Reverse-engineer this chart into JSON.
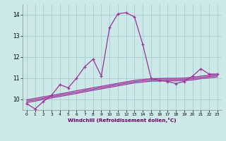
{
  "xlabel": "Windchill (Refroidissement éolien,°C)",
  "bg_color": "#cce8e8",
  "grid_color": "#aacccc",
  "line_color": "#993399",
  "x": [
    0,
    1,
    2,
    3,
    4,
    5,
    6,
    7,
    8,
    9,
    10,
    11,
    12,
    13,
    14,
    15,
    16,
    17,
    18,
    19,
    20,
    21,
    22,
    23
  ],
  "y_main": [
    9.8,
    9.55,
    9.9,
    10.2,
    10.7,
    10.55,
    11.0,
    11.55,
    11.9,
    11.1,
    13.4,
    14.05,
    14.1,
    13.9,
    12.6,
    11.0,
    10.9,
    10.85,
    10.75,
    10.85,
    11.1,
    11.45,
    11.2,
    11.2
  ],
  "y_line2": [
    9.85,
    9.92,
    10.0,
    10.07,
    10.14,
    10.21,
    10.28,
    10.36,
    10.43,
    10.5,
    10.57,
    10.64,
    10.71,
    10.78,
    10.82,
    10.86,
    10.87,
    10.88,
    10.88,
    10.89,
    10.92,
    10.98,
    11.02,
    11.06
  ],
  "y_line3": [
    9.92,
    9.98,
    10.06,
    10.13,
    10.2,
    10.27,
    10.34,
    10.42,
    10.49,
    10.56,
    10.63,
    10.7,
    10.77,
    10.84,
    10.88,
    10.92,
    10.93,
    10.94,
    10.94,
    10.95,
    10.98,
    11.04,
    11.08,
    11.12
  ],
  "y_line4": [
    9.98,
    10.05,
    10.12,
    10.19,
    10.26,
    10.33,
    10.41,
    10.48,
    10.55,
    10.62,
    10.69,
    10.76,
    10.83,
    10.9,
    10.94,
    10.98,
    10.99,
    11.0,
    11.0,
    11.01,
    11.04,
    11.1,
    11.14,
    11.18
  ],
  "xlim": [
    -0.5,
    23.5
  ],
  "ylim": [
    9.5,
    14.5
  ],
  "yticks": [
    10,
    11,
    12,
    13,
    14
  ],
  "xticks": [
    0,
    1,
    2,
    3,
    4,
    5,
    6,
    7,
    8,
    9,
    10,
    11,
    12,
    13,
    14,
    15,
    16,
    17,
    18,
    19,
    20,
    21,
    22,
    23
  ]
}
